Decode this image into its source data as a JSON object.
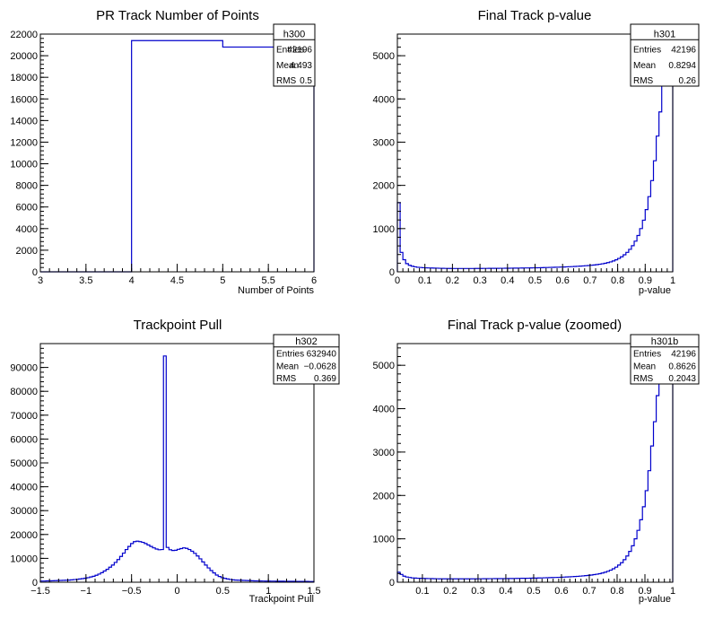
{
  "chart_data": [
    {
      "type": "bar",
      "id": "h300",
      "title": "PR Track Number of Points",
      "xlabel": "Number of Points",
      "ylabel": "",
      "xlim": [
        3,
        6
      ],
      "ylim": [
        0,
        22000
      ],
      "xticks": [
        3,
        3.5,
        4,
        4.5,
        5,
        5.5,
        6
      ],
      "xtick_labels": [
        "3",
        "3.5",
        "4",
        "4.5",
        "5",
        "5.5",
        "6"
      ],
      "yticks": [
        0,
        2000,
        4000,
        6000,
        8000,
        10000,
        12000,
        14000,
        16000,
        18000,
        20000,
        22000
      ],
      "ytick_labels": [
        "0",
        "2000",
        "4000",
        "6000",
        "8000",
        "10000",
        "12000",
        "14000",
        "16000",
        "18000",
        "20000",
        "22000"
      ],
      "bin_edges": [
        3,
        4,
        5,
        6
      ],
      "values": [
        0,
        21400,
        20800
      ],
      "line_color": "#0000cc",
      "stats": [
        {
          "label": "Entries",
          "value": "42196"
        },
        {
          "label": "Mean",
          "value": "4.493"
        },
        {
          "label": "RMS",
          "value": "0.5"
        }
      ]
    },
    {
      "type": "bar",
      "id": "h301",
      "title": "Final Track p-value",
      "xlabel": "p-value",
      "ylabel": "",
      "xlim": [
        0,
        1
      ],
      "ylim": [
        0,
        5500
      ],
      "xticks": [
        0,
        0.1,
        0.2,
        0.3,
        0.4,
        0.5,
        0.6,
        0.7,
        0.8,
        0.9,
        1
      ],
      "xtick_labels": [
        "0",
        "0.1",
        "0.2",
        "0.3",
        "0.4",
        "0.5",
        "0.6",
        "0.7",
        "0.8",
        "0.9",
        "1"
      ],
      "yticks": [
        0,
        1000,
        2000,
        3000,
        4000,
        5000
      ],
      "ytick_labels": [
        "0",
        "1000",
        "2000",
        "3000",
        "4000",
        "5000"
      ],
      "bin_start": 0,
      "bin_width": 0.01,
      "values": [
        1600,
        450,
        280,
        190,
        150,
        130,
        115,
        105,
        100,
        95,
        92,
        90,
        88,
        86,
        84,
        82,
        80,
        79,
        78,
        78,
        77,
        77,
        77,
        77,
        77,
        77,
        77,
        77,
        78,
        78,
        78,
        79,
        79,
        80,
        80,
        81,
        81,
        82,
        82,
        83,
        83,
        84,
        85,
        86,
        87,
        88,
        89,
        90,
        91,
        92,
        93,
        95,
        96,
        98,
        100,
        102,
        104,
        106,
        108,
        110,
        112,
        115,
        118,
        121,
        124,
        128,
        132,
        136,
        141,
        146,
        152,
        158,
        166,
        175,
        185,
        197,
        212,
        230,
        252,
        278,
        310,
        348,
        395,
        450,
        520,
        605,
        710,
        840,
        1000,
        1195,
        1440,
        1740,
        2110,
        2570,
        3140,
        3700,
        4300,
        4600,
        5400,
        5450
      ],
      "line_color": "#0000cc",
      "stats": [
        {
          "label": "Entries",
          "value": "42196"
        },
        {
          "label": "Mean",
          "value": "0.8294"
        },
        {
          "label": "RMS",
          "value": "0.26"
        }
      ]
    },
    {
      "type": "bar",
      "id": "h302",
      "title": "Trackpoint Pull",
      "xlabel": "Trackpoint Pull",
      "ylabel": "",
      "xlim": [
        -1.5,
        1.5
      ],
      "ylim": [
        0,
        100000
      ],
      "xticks": [
        -1.5,
        -1,
        -0.5,
        0,
        0.5,
        1,
        1.5
      ],
      "xtick_labels": [
        "−1.5",
        "−1",
        "−0.5",
        "0",
        "0.5",
        "1",
        "1.5"
      ],
      "yticks": [
        0,
        10000,
        20000,
        30000,
        40000,
        50000,
        60000,
        70000,
        80000,
        90000
      ],
      "ytick_labels": [
        "0",
        "10000",
        "20000",
        "30000",
        "40000",
        "50000",
        "60000",
        "70000",
        "80000",
        "90000"
      ],
      "bin_start": -1.5,
      "bin_width": 0.03,
      "values": [
        500,
        500,
        550,
        550,
        600,
        650,
        700,
        750,
        800,
        850,
        900,
        1000,
        1100,
        1200,
        1350,
        1500,
        1700,
        1900,
        2200,
        2500,
        2900,
        3400,
        4000,
        4700,
        5400,
        6300,
        7200,
        8300,
        9500,
        10800,
        12200,
        13700,
        15000,
        16200,
        17000,
        17200,
        17000,
        16700,
        16200,
        15600,
        15000,
        14400,
        13900,
        13600,
        13700,
        94800,
        14600,
        13600,
        13300,
        13400,
        13800,
        14100,
        14400,
        14200,
        13700,
        13000,
        12100,
        11000,
        9800,
        8500,
        7200,
        6000,
        4900,
        3900,
        3000,
        2400,
        1900,
        1600,
        1350,
        1150,
        1000,
        900,
        850,
        800,
        750,
        700,
        650,
        600,
        560,
        540,
        520,
        500,
        480,
        460,
        450,
        440,
        430,
        420,
        410,
        400,
        390,
        380,
        370,
        360,
        350,
        340,
        330,
        320,
        310,
        300
      ],
      "line_color": "#0000cc",
      "stats": [
        {
          "label": "Entries",
          "value": "632940"
        },
        {
          "label": "Mean",
          "value": "−0.0628"
        },
        {
          "label": "RMS",
          "value": "0.369"
        }
      ]
    },
    {
      "type": "bar",
      "id": "h301b",
      "title": "Final Track p-value (zoomed)",
      "xlabel": "p-value",
      "ylabel": "",
      "xlim": [
        0.01,
        1
      ],
      "ylim": [
        0,
        5500
      ],
      "xticks": [
        0.1,
        0.2,
        0.3,
        0.4,
        0.5,
        0.6,
        0.7,
        0.8,
        0.9,
        1
      ],
      "xtick_labels": [
        "0.1",
        "0.2",
        "0.3",
        "0.4",
        "0.5",
        "0.6",
        "0.7",
        "0.8",
        "0.9",
        "1"
      ],
      "yticks": [
        0,
        1000,
        2000,
        3000,
        4000,
        5000
      ],
      "ytick_labels": [
        "0",
        "1000",
        "2000",
        "3000",
        "4000",
        "5000"
      ],
      "bin_start": 0.01,
      "bin_width": 0.0099,
      "values": [
        230,
        180,
        140,
        120,
        110,
        100,
        95,
        92,
        90,
        88,
        86,
        84,
        82,
        80,
        79,
        78,
        78,
        77,
        77,
        77,
        77,
        77,
        77,
        77,
        77,
        77,
        78,
        78,
        78,
        79,
        79,
        80,
        80,
        81,
        81,
        82,
        82,
        83,
        83,
        84,
        85,
        86,
        87,
        88,
        89,
        90,
        91,
        92,
        93,
        95,
        96,
        98,
        100,
        102,
        104,
        106,
        108,
        110,
        112,
        115,
        118,
        121,
        124,
        128,
        132,
        136,
        141,
        146,
        152,
        158,
        166,
        175,
        185,
        197,
        212,
        230,
        252,
        278,
        310,
        348,
        395,
        450,
        520,
        605,
        710,
        840,
        1000,
        1195,
        1440,
        1740,
        2110,
        2570,
        3140,
        3700,
        4300,
        4600,
        5400,
        5450,
        5450,
        5450
      ],
      "line_color": "#0000cc",
      "stats": [
        {
          "label": "Entries",
          "value": "42196"
        },
        {
          "label": "Mean",
          "value": "0.8626"
        },
        {
          "label": "RMS",
          "value": "0.2043"
        }
      ]
    }
  ]
}
